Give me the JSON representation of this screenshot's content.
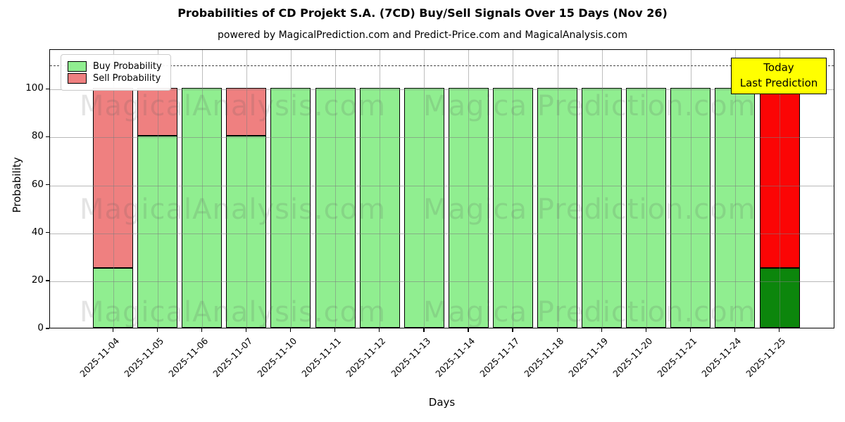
{
  "title": "Probabilities of CD Projekt S.A. (7CD) Buy/Sell Signals Over 15 Days (Nov 26)",
  "subtitle": "powered by MagicalPrediction.com and Predict-Price.com and MagicalAnalysis.com",
  "legend": {
    "buy_label": "Buy Probability",
    "sell_label": "Sell Probability"
  },
  "annotation": {
    "line1": "Today",
    "line2": "Last Prediction"
  },
  "watermarks": {
    "left": "MagicalAnalysis.com",
    "right": "Magica Prediction.com"
  },
  "colors": {
    "buy": "#90ee90",
    "sell": "#ef8080",
    "today_buy": "#0c860c",
    "today_sell": "#fb0505",
    "annotation_bg": "#ffff00",
    "grid": "#b0b0b0"
  },
  "chart_data": {
    "type": "bar",
    "stacked": true,
    "title": "Probabilities of CD Projekt S.A. (7CD) Buy/Sell Signals Over 15 Days (Nov 26)",
    "xlabel": "Days",
    "ylabel": "Probability",
    "ylim": [
      0,
      116.5
    ],
    "yticks": [
      0,
      20,
      40,
      60,
      80,
      100
    ],
    "grid": true,
    "dashed_line_y": 110,
    "legend_position": "upper left",
    "categories": [
      "2025-11-04",
      "2025-11-05",
      "2025-11-06",
      "2025-11-07",
      "2025-11-10",
      "2025-11-11",
      "2025-11-12",
      "2025-11-13",
      "2025-11-14",
      "2025-11-17",
      "2025-11-18",
      "2025-11-19",
      "2025-11-20",
      "2025-11-21",
      "2025-11-24",
      "2025-11-25"
    ],
    "series": [
      {
        "name": "Buy Probability",
        "values": [
          25,
          80,
          100,
          80,
          100,
          100,
          100,
          100,
          100,
          100,
          100,
          100,
          100,
          100,
          100,
          25
        ]
      },
      {
        "name": "Sell Probability",
        "values": [
          75,
          20,
          0,
          20,
          0,
          0,
          0,
          0,
          0,
          0,
          0,
          0,
          0,
          0,
          0,
          75
        ]
      }
    ],
    "today_bar_index": 15
  }
}
